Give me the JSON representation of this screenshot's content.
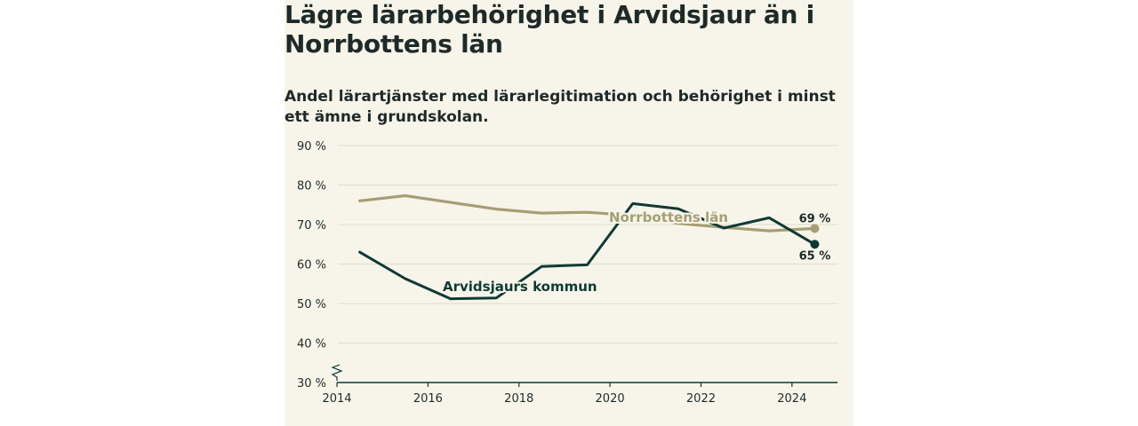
{
  "title": "Lägre lärarbehörighet i Arvidsjaur än i Norrbottens län",
  "subtitle": "Andel lärartjänster med lärarlegitimation och behörighet i minst ett ämne i grundskolan.",
  "colors": {
    "background": "#f7f5ea",
    "arvidsjaur": "#0f3a34",
    "norrbotten": "#a69e74",
    "grid": "#dedbcb",
    "text": "#1e2a28"
  },
  "chart_data": {
    "type": "line",
    "x": [
      2014.5,
      2015.5,
      2016.5,
      2017.5,
      2018.5,
      2019.5,
      2020.5,
      2021.5,
      2022.5,
      2023.5,
      2024.5
    ],
    "xlim": [
      2014,
      2025
    ],
    "ylim": [
      30,
      90
    ],
    "y_ticks": [
      30,
      40,
      50,
      60,
      70,
      80,
      90
    ],
    "y_tick_labels": [
      "30 %",
      "40 %",
      "50 %",
      "60 %",
      "70 %",
      "80 %",
      "90 %"
    ],
    "x_ticks": [
      2014,
      2016,
      2018,
      2020,
      2022,
      2024
    ],
    "x_tick_labels": [
      "2014",
      "2016",
      "2018",
      "2020",
      "2022",
      "2024"
    ],
    "axis_break": true,
    "grid": true,
    "series": [
      {
        "name": "Norrbottens län",
        "color": "#a69e74",
        "values": [
          76,
          77.3,
          75.6,
          73.9,
          72.9,
          73.1,
          72.3,
          70.3,
          69.3,
          68.4,
          69
        ],
        "end_label": "69 %"
      },
      {
        "name": "Arvidsjaurs kommun",
        "color": "#0f3a34",
        "values": [
          63,
          56.3,
          51.2,
          51.4,
          59.4,
          59.8,
          75.3,
          74,
          69.1,
          71.7,
          65
        ],
        "end_label": "65 %"
      }
    ]
  }
}
